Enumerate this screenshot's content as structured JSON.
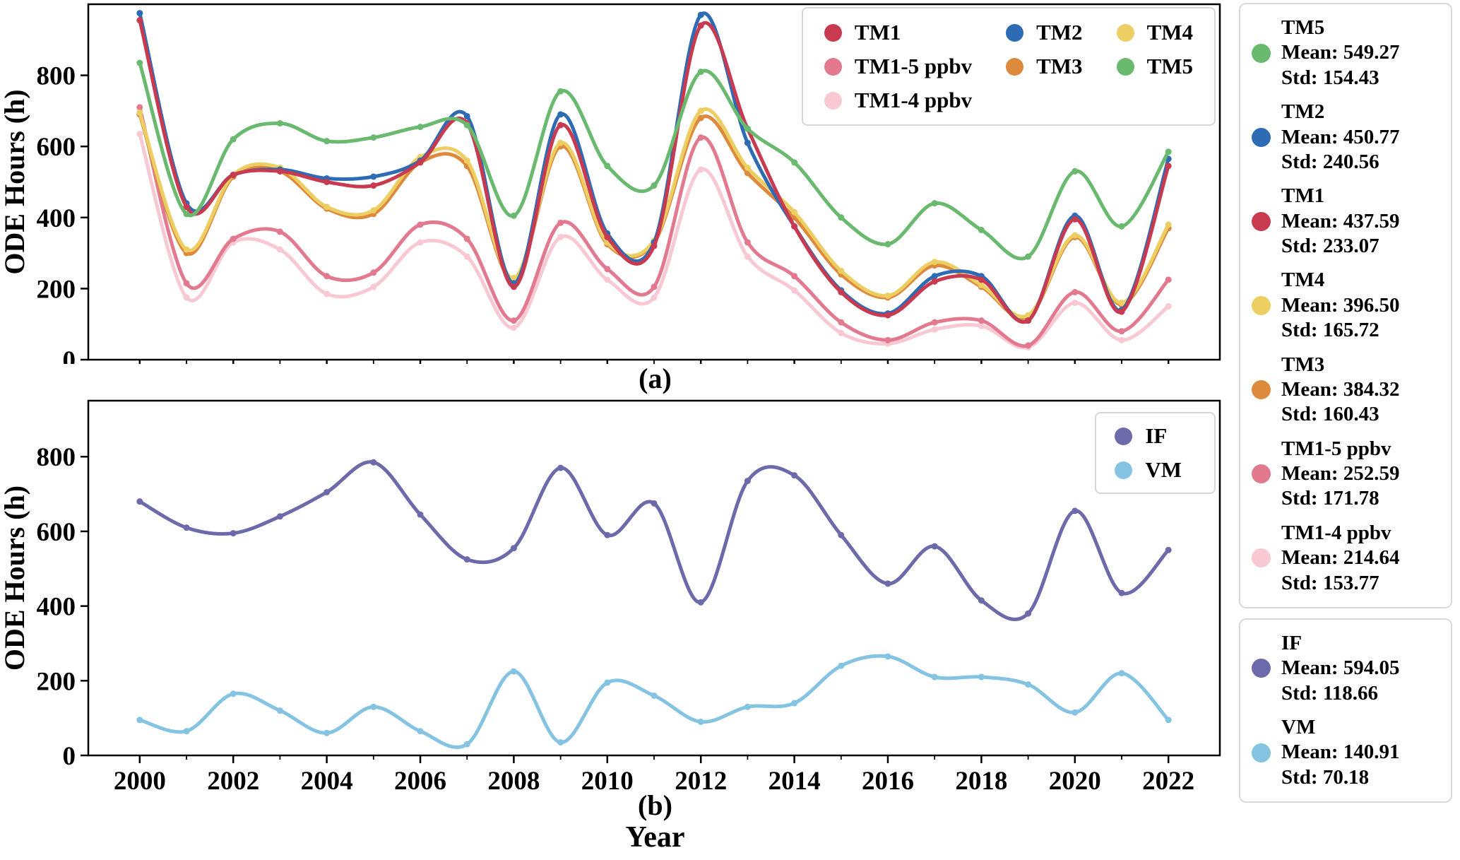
{
  "panels": {
    "a": {
      "caption": "(a)",
      "ylabel": "ODE Hours (h)",
      "ylim": [
        0,
        1000
      ],
      "yticks": [
        0,
        200,
        400,
        600,
        800
      ],
      "xlim": [
        1998.9,
        2023.1
      ],
      "xticks": [
        2000,
        2002,
        2004,
        2006,
        2008,
        2010,
        2012,
        2014,
        2016,
        2018,
        2020,
        2022
      ],
      "show_xtick_labels": false
    },
    "b": {
      "caption": "(b)",
      "xlabel": "Year",
      "ylabel": "ODE Hours (h)",
      "ylim": [
        0,
        950
      ],
      "yticks": [
        0,
        200,
        400,
        600,
        800
      ],
      "xlim": [
        1998.9,
        2023.1
      ],
      "xticks": [
        2000,
        2002,
        2004,
        2006,
        2008,
        2010,
        2012,
        2014,
        2016,
        2018,
        2020,
        2022
      ],
      "show_xtick_labels": true
    }
  },
  "chart_data": [
    {
      "type": "line",
      "panel": "a",
      "title": "",
      "xlabel": "",
      "ylabel": "ODE Hours (h)",
      "x": [
        2000,
        2001,
        2002,
        2003,
        2004,
        2005,
        2006,
        2007,
        2008,
        2009,
        2010,
        2011,
        2012,
        2013,
        2014,
        2015,
        2016,
        2017,
        2018,
        2019,
        2020,
        2021,
        2022
      ],
      "series": [
        {
          "name": "TM1-4 ppbv",
          "color": "#f8c8d3",
          "values": [
            635,
            175,
            330,
            310,
            185,
            205,
            330,
            290,
            90,
            345,
            225,
            175,
            535,
            290,
            195,
            75,
            45,
            85,
            95,
            35,
            160,
            55,
            150
          ]
        },
        {
          "name": "TM1-5 ppbv",
          "color": "#e2798f",
          "values": [
            710,
            215,
            340,
            360,
            235,
            245,
            380,
            340,
            110,
            385,
            255,
            205,
            625,
            330,
            235,
            105,
            55,
            105,
            110,
            40,
            190,
            80,
            225
          ]
        },
        {
          "name": "TM3",
          "color": "#dd8a3d",
          "values": [
            690,
            300,
            515,
            530,
            425,
            410,
            555,
            545,
            225,
            600,
            325,
            330,
            680,
            525,
            400,
            240,
            175,
            265,
            205,
            120,
            345,
            155,
            370
          ]
        },
        {
          "name": "TM4",
          "color": "#ecce63",
          "values": [
            695,
            310,
            520,
            540,
            430,
            420,
            570,
            560,
            230,
            610,
            330,
            335,
            700,
            540,
            415,
            250,
            180,
            275,
            210,
            125,
            350,
            160,
            380
          ]
        },
        {
          "name": "TM2",
          "color": "#2d6cb5",
          "values": [
            975,
            440,
            520,
            535,
            510,
            515,
            560,
            685,
            215,
            690,
            355,
            330,
            970,
            610,
            375,
            195,
            130,
            235,
            235,
            110,
            405,
            140,
            565
          ]
        },
        {
          "name": "TM1",
          "color": "#c83a50",
          "values": [
            955,
            430,
            520,
            530,
            500,
            490,
            555,
            665,
            205,
            660,
            345,
            320,
            940,
            650,
            375,
            190,
            125,
            220,
            225,
            110,
            395,
            135,
            545
          ]
        },
        {
          "name": "TM5",
          "color": "#69b96f",
          "values": [
            835,
            410,
            620,
            665,
            615,
            625,
            655,
            660,
            405,
            755,
            545,
            490,
            810,
            650,
            555,
            400,
            325,
            440,
            365,
            290,
            530,
            375,
            585
          ]
        }
      ],
      "legend_columns": [
        [
          "TM1",
          "TM1-5 ppbv",
          "TM1-4 ppbv"
        ],
        [
          "TM2",
          "TM3"
        ],
        [
          "TM4",
          "TM5"
        ]
      ]
    },
    {
      "type": "line",
      "panel": "b",
      "title": "",
      "xlabel": "Year",
      "ylabel": "ODE Hours (h)",
      "x": [
        2000,
        2001,
        2002,
        2003,
        2004,
        2005,
        2006,
        2007,
        2008,
        2009,
        2010,
        2011,
        2012,
        2013,
        2014,
        2015,
        2016,
        2017,
        2018,
        2019,
        2020,
        2021,
        2022
      ],
      "series": [
        {
          "name": "IF",
          "color": "#6c6aab",
          "values": [
            680,
            610,
            595,
            640,
            705,
            785,
            645,
            525,
            555,
            770,
            590,
            675,
            410,
            735,
            750,
            590,
            460,
            560,
            415,
            380,
            655,
            435,
            550
          ]
        },
        {
          "name": "VM",
          "color": "#84c3e2",
          "values": [
            95,
            65,
            165,
            120,
            60,
            130,
            65,
            30,
            225,
            35,
            195,
            160,
            90,
            130,
            140,
            240,
            265,
            210,
            210,
            190,
            115,
            220,
            95
          ]
        }
      ],
      "legend_columns": [
        [
          "IF",
          "VM"
        ]
      ]
    }
  ],
  "stats_panels": [
    {
      "entries": [
        {
          "name": "TM5",
          "color": "#69b96f",
          "mean": "549.27",
          "std": "154.43"
        },
        {
          "name": "TM2",
          "color": "#2d6cb5",
          "mean": "450.77",
          "std": "240.56"
        },
        {
          "name": "TM1",
          "color": "#c83a50",
          "mean": "437.59",
          "std": "233.07"
        },
        {
          "name": "TM4",
          "color": "#ecce63",
          "mean": "396.50",
          "std": "165.72"
        },
        {
          "name": "TM3",
          "color": "#dd8a3d",
          "mean": "384.32",
          "std": "160.43"
        },
        {
          "name": "TM1-5 ppbv",
          "color": "#e2798f",
          "mean": "252.59",
          "std": "171.78"
        },
        {
          "name": "TM1-4 ppbv",
          "color": "#f8c8d3",
          "mean": "214.64",
          "std": "153.77"
        }
      ]
    },
    {
      "entries": [
        {
          "name": "IF",
          "color": "#6c6aab",
          "mean": "594.05",
          "std": "118.66"
        },
        {
          "name": "VM",
          "color": "#84c3e2",
          "mean": "140.91",
          "std": "70.18"
        }
      ]
    }
  ],
  "labels": {
    "mean_prefix": "Mean: ",
    "std_prefix": "Std: "
  }
}
